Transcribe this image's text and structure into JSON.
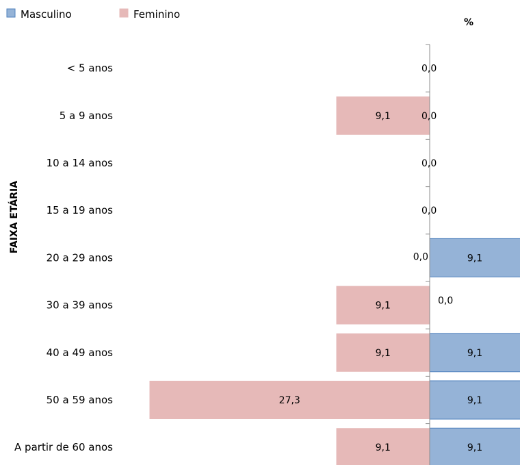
{
  "chart_data": {
    "type": "bar",
    "orientation": "horizontal",
    "layout": "population-pyramid",
    "title": "",
    "xlabel": "%",
    "ylabel": "FAIXA ETÁRIA",
    "categories": [
      "< 5 anos",
      "5 a 9 anos",
      "10 a 14 anos",
      "15 a 19 anos",
      "20 a 29 anos",
      "30 a 39 anos",
      "40 a 49 anos",
      "50 a 59 anos",
      "A partir de 60 anos"
    ],
    "series": [
      {
        "name": "Masculino",
        "color": "#95b3d7",
        "border": "#4f81bd",
        "values": [
          0.0,
          0.0,
          0.0,
          0.0,
          9.1,
          0.0,
          9.1,
          9.1,
          9.1
        ],
        "labels": [
          "0,0",
          "0,0",
          "0,0",
          "0,0",
          "9,1",
          "0,0",
          "9,1",
          "9,1",
          "9,1"
        ]
      },
      {
        "name": "Feminino",
        "color": "#e6b9b8",
        "border": "#e6b9b8",
        "values": [
          0.0,
          9.1,
          0.0,
          0.0,
          0.0,
          9.1,
          9.1,
          27.3,
          9.1
        ],
        "labels": [
          "",
          "9,1",
          "",
          "",
          "0,0",
          "9,1",
          "9,1",
          "27,3",
          "9,1"
        ]
      }
    ],
    "legend": {
      "position": "top-left"
    },
    "grid": false
  }
}
